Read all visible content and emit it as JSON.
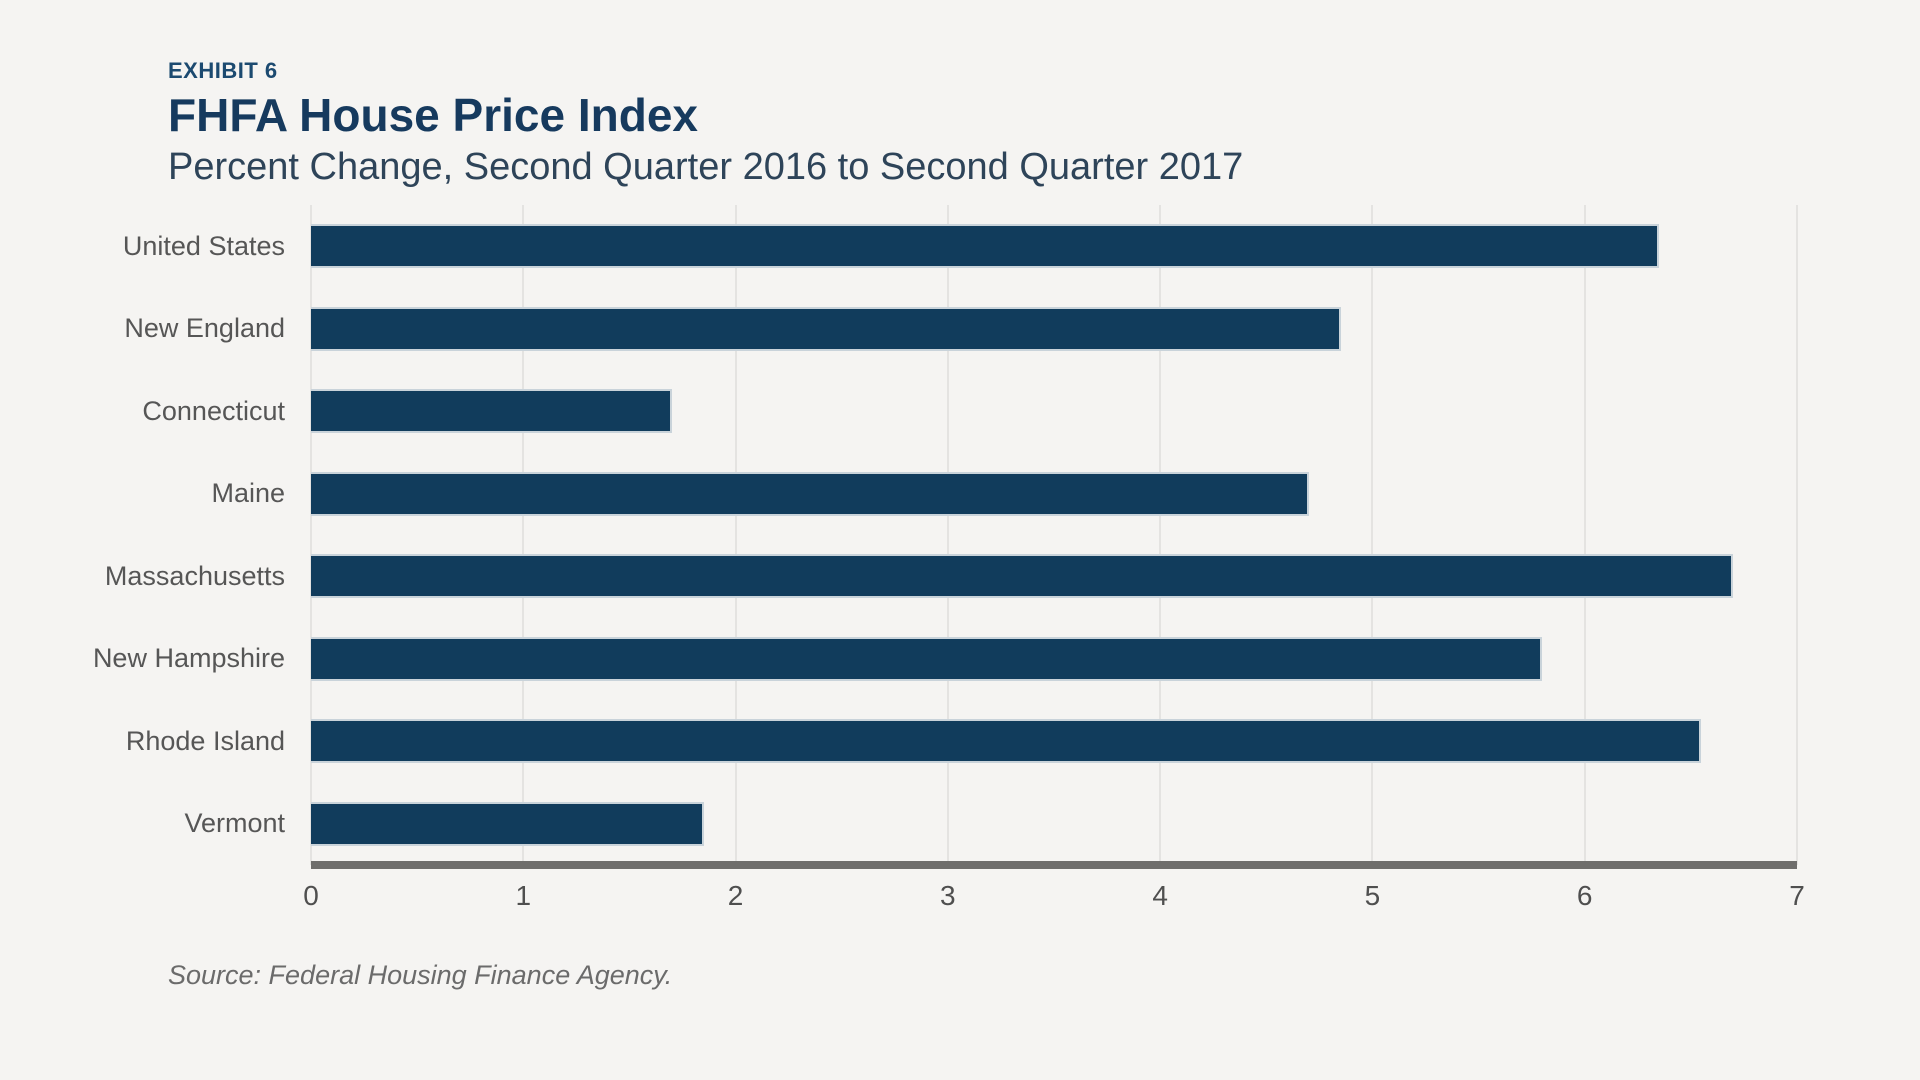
{
  "header": {
    "exhibit_label": "EXHIBIT 6",
    "title": "FHFA House Price Index",
    "subtitle": "Percent Change, Second Quarter 2016 to Second Quarter 2017"
  },
  "chart_data": {
    "type": "bar",
    "orientation": "horizontal",
    "title": "FHFA House Price Index",
    "subtitle": "Percent Change, Second Quarter 2016 to Second Quarter 2017",
    "categories": [
      "United States",
      "New England",
      "Connecticut",
      "Maine",
      "Massachusetts",
      "New Hampshire",
      "Rhode Island",
      "Vermont"
    ],
    "values": [
      6.35,
      4.85,
      1.7,
      4.7,
      6.7,
      5.8,
      6.55,
      1.85
    ],
    "xlabel": "",
    "ylabel": "",
    "xlim": [
      0,
      7
    ],
    "x_ticks": [
      0,
      1,
      2,
      3,
      4,
      5,
      6,
      7
    ],
    "grid": "vertical",
    "legend": "none",
    "bar_color": "#113c5c",
    "bar_border_color": "#c9d3da",
    "gridline_color": "#e4e3e1",
    "axis_line_color": "#6f6e6c",
    "background_color": "#f5f4f2"
  },
  "footer": {
    "source_note": "Source: Federal Housing Finance Agency."
  }
}
